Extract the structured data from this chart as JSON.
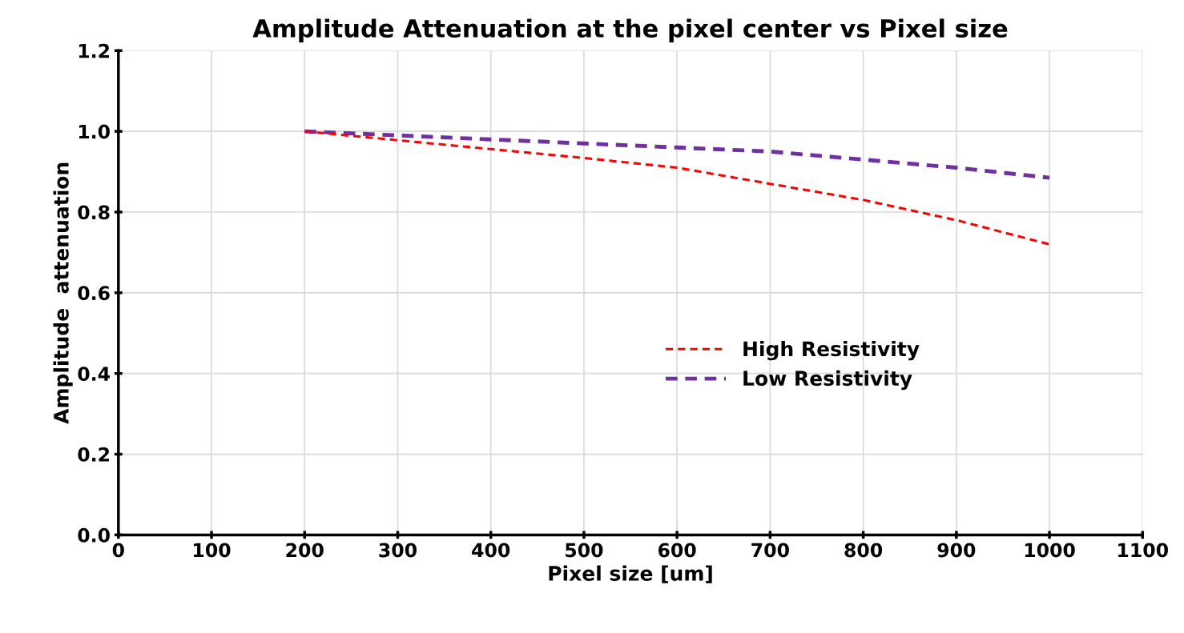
{
  "chart_data": {
    "type": "line",
    "title": "Amplitude Attenuation at the pixel center vs Pixel size",
    "xlabel": "Pixel size [um]",
    "ylabel": "Amplitude  attenuation",
    "x": [
      200,
      300,
      400,
      500,
      600,
      700,
      800,
      900,
      1000
    ],
    "series": [
      {
        "name": "High Resistivity",
        "color": "#ff0000",
        "values": [
          1.0,
          0.978,
          0.956,
          0.934,
          0.91,
          0.87,
          0.83,
          0.78,
          0.72
        ]
      },
      {
        "name": "Low Resistivity",
        "color": "#7030a0",
        "values": [
          1.0,
          0.99,
          0.98,
          0.97,
          0.96,
          0.95,
          0.93,
          0.91,
          0.885
        ]
      }
    ],
    "xlim": [
      0,
      1100
    ],
    "xticks": [
      0,
      100,
      200,
      300,
      400,
      500,
      600,
      700,
      800,
      900,
      1000,
      1100
    ],
    "ylim": [
      0,
      1.2
    ],
    "yticks": [
      {
        "value": 0,
        "label": "0.0"
      },
      {
        "value": 0.2,
        "label": "0.2"
      },
      {
        "value": 0.4,
        "label": "0.4"
      },
      {
        "value": 0.6,
        "label": "0.6"
      },
      {
        "value": 0.8,
        "label": "0.8"
      },
      {
        "value": 1.0,
        "label": "1.0"
      },
      {
        "value": 1.2,
        "label": "1.2"
      }
    ],
    "grid": true,
    "legend": "center right",
    "line_style": "dashed",
    "marker": "none"
  }
}
